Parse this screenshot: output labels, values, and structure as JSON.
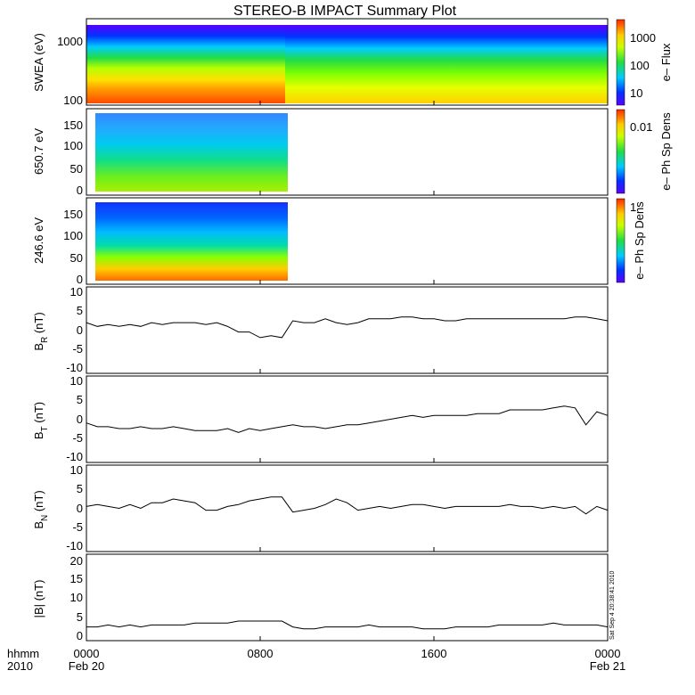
{
  "title": "STEREO-B IMPACT Summary Plot",
  "panels": [
    {
      "id": "swea",
      "ylabel": "SWEA (eV)",
      "yticks": [
        "1000",
        "100"
      ],
      "colorbar_label": "e– Flux",
      "colorbar_ticks": [
        "1000",
        "100",
        "10"
      ]
    },
    {
      "id": "pad650",
      "ylabel": "650.7 eV",
      "yticks": [
        "150",
        "100",
        "50",
        "0"
      ],
      "colorbar_label": "e– Ph Sp Dens",
      "colorbar_ticks": [
        "0.01"
      ]
    },
    {
      "id": "pad246",
      "ylabel": "246.6 eV",
      "yticks": [
        "150",
        "100",
        "50",
        "0"
      ],
      "colorbar_label": "e– Ph Sp Dens",
      "colorbar_ticks": [
        "1"
      ]
    },
    {
      "id": "br",
      "ylabel_main": "B",
      "ylabel_sub": "R",
      "ylabel_unit": " (nT)",
      "yticks": [
        "10",
        "5",
        "0",
        "-5",
        "-10"
      ]
    },
    {
      "id": "bt",
      "ylabel_main": "B",
      "ylabel_sub": "T",
      "ylabel_unit": " (nT)",
      "yticks": [
        "10",
        "5",
        "0",
        "-5",
        "-10"
      ]
    },
    {
      "id": "bn",
      "ylabel_main": "B",
      "ylabel_sub": "N",
      "ylabel_unit": " (nT)",
      "yticks": [
        "10",
        "5",
        "0",
        "-5",
        "-10"
      ]
    },
    {
      "id": "bmag",
      "ylabel": "|B| (nT)",
      "yticks": [
        "20",
        "15",
        "10",
        "5",
        "0"
      ],
      "stamp": "Sat Sep  4 20:38:41 2010"
    }
  ],
  "xaxis": {
    "left_label_1": "hhmm",
    "left_label_2": "2010",
    "ticks": [
      {
        "t": 0,
        "label": "0000",
        "sub": "Feb 20"
      },
      {
        "t": 8,
        "label": "0800",
        "sub": ""
      },
      {
        "t": 16,
        "label": "1600",
        "sub": ""
      },
      {
        "t": 24,
        "label": "0000",
        "sub": "Feb 21"
      }
    ]
  },
  "chart_data": [
    {
      "type": "heatmap",
      "title": "SWEA (eV)",
      "x_range_hours": [
        0,
        24
      ],
      "y_scale": "log",
      "y_range": [
        90,
        2000
      ],
      "colorbar": "e– Flux",
      "colorbar_scale": "log",
      "colorbar_range": [
        3,
        3000
      ],
      "note": "high flux below ~300 eV before 0900; flux drops after 0900"
    },
    {
      "type": "heatmap",
      "title": "650.7 eV",
      "x_range_hours": [
        0,
        9.5
      ],
      "y_range": [
        -10,
        180
      ],
      "colorbar": "e– Ph Sp Dens"
    },
    {
      "type": "heatmap",
      "title": "246.6 eV",
      "x_range_hours": [
        0,
        9.5
      ],
      "y_range": [
        -10,
        180
      ],
      "colorbar": "e– Ph Sp Dens"
    },
    {
      "type": "line",
      "ylabel": "BR (nT)",
      "ylim": [
        -12,
        11
      ],
      "x": [
        0,
        0.5,
        1,
        1.5,
        2,
        2.5,
        3,
        3.5,
        4,
        4.5,
        5,
        5.5,
        6,
        6.5,
        7,
        7.5,
        8,
        8.5,
        9,
        9.5,
        10,
        10.5,
        11,
        11.5,
        12,
        12.5,
        13,
        13.5,
        14,
        14.5,
        15,
        15.5,
        16,
        16.5,
        17,
        17.5,
        18,
        18.5,
        19,
        19.5,
        20,
        20.5,
        21,
        21.5,
        22,
        22.5,
        23,
        23.5,
        24
      ],
      "y": [
        1.5,
        0.5,
        1,
        0.5,
        1,
        0.5,
        1.5,
        1,
        1.5,
        1.5,
        1.5,
        1,
        1.5,
        0.5,
        -1,
        -1,
        -2.5,
        -2,
        -2.5,
        2,
        1.5,
        1.5,
        2.5,
        1.5,
        1,
        1.5,
        2.5,
        2.5,
        2.5,
        3,
        3,
        2.5,
        2.5,
        2,
        2,
        2.5,
        2.5,
        2.5,
        2.5,
        2.5,
        2.5,
        2.5,
        2.5,
        2.5,
        2.5,
        3,
        3,
        2.5,
        2
      ]
    },
    {
      "type": "line",
      "ylabel": "BT (nT)",
      "ylim": [
        -12,
        11
      ],
      "x": [
        0,
        0.5,
        1,
        1.5,
        2,
        2.5,
        3,
        3.5,
        4,
        4.5,
        5,
        5.5,
        6,
        6.5,
        7,
        7.5,
        8,
        8.5,
        9,
        9.5,
        10,
        10.5,
        11,
        11.5,
        12,
        12.5,
        13,
        13.5,
        14,
        14.5,
        15,
        15.5,
        16,
        16.5,
        17,
        17.5,
        18,
        18.5,
        19,
        19.5,
        20,
        20.5,
        21,
        21.5,
        22,
        22.5,
        23,
        23.5,
        24
      ],
      "y": [
        -1.5,
        -2.5,
        -2.5,
        -3,
        -3,
        -2.5,
        -3,
        -3,
        -2.5,
        -3,
        -3.5,
        -3.5,
        -3.5,
        -3,
        -4,
        -3,
        -3.5,
        -3,
        -2.5,
        -2,
        -2.5,
        -2.5,
        -3,
        -2.5,
        -2,
        -2,
        -1.5,
        -1,
        -0.5,
        0,
        0.5,
        0,
        0.5,
        0.5,
        0.5,
        0.5,
        1,
        1,
        1,
        2,
        2,
        2,
        2,
        2.5,
        3,
        2.5,
        -2,
        1.5,
        0.5
      ]
    },
    {
      "type": "line",
      "ylabel": "BN (nT)",
      "ylim": [
        -12,
        11
      ],
      "x": [
        0,
        0.5,
        1,
        1.5,
        2,
        2.5,
        3,
        3.5,
        4,
        4.5,
        5,
        5.5,
        6,
        6.5,
        7,
        7.5,
        8,
        8.5,
        9,
        9.5,
        10,
        10.5,
        11,
        11.5,
        12,
        12.5,
        13,
        13.5,
        14,
        14.5,
        15,
        15.5,
        16,
        16.5,
        17,
        17.5,
        18,
        18.5,
        19,
        19.5,
        20,
        20.5,
        21,
        21.5,
        22,
        22.5,
        23,
        23.5,
        24
      ],
      "y": [
        0,
        0.5,
        0,
        -0.5,
        0.5,
        -0.5,
        1,
        1,
        2,
        1.5,
        1,
        -1,
        -1,
        0,
        0.5,
        1.5,
        2,
        2.5,
        2.5,
        -1.5,
        -1,
        -0.5,
        0.5,
        2,
        1,
        -1,
        -0.5,
        0,
        -0.5,
        0,
        0.5,
        0.5,
        0,
        -0.5,
        0,
        0,
        0,
        0,
        0,
        0.5,
        0,
        0,
        -0.5,
        0,
        -0.5,
        0,
        -2,
        0,
        -1
      ]
    },
    {
      "type": "line",
      "ylabel": "|B| (nT)",
      "ylim": [
        -1,
        21
      ],
      "x": [
        0,
        0.5,
        1,
        1.5,
        2,
        2.5,
        3,
        3.5,
        4,
        4.5,
        5,
        5.5,
        6,
        6.5,
        7,
        7.5,
        8,
        8.5,
        9,
        9.5,
        10,
        10.5,
        11,
        11.5,
        12,
        12.5,
        13,
        13.5,
        14,
        14.5,
        15,
        15.5,
        16,
        16.5,
        17,
        17.5,
        18,
        18.5,
        19,
        19.5,
        20,
        20.5,
        21,
        21.5,
        22,
        22.5,
        23,
        23.5,
        24
      ],
      "y": [
        2.5,
        2.5,
        3,
        2.5,
        3,
        2.5,
        3,
        3,
        3,
        3,
        3.5,
        3.5,
        3.5,
        3.5,
        4,
        4,
        4,
        4,
        4,
        2.5,
        2,
        2,
        2.5,
        2.5,
        2.5,
        2.5,
        3,
        2.5,
        2.5,
        2.5,
        2.5,
        2,
        2,
        2,
        2.5,
        2.5,
        2.5,
        2.5,
        3,
        3,
        3,
        3,
        3,
        3.5,
        3,
        3,
        3,
        3,
        2.5
      ]
    }
  ]
}
